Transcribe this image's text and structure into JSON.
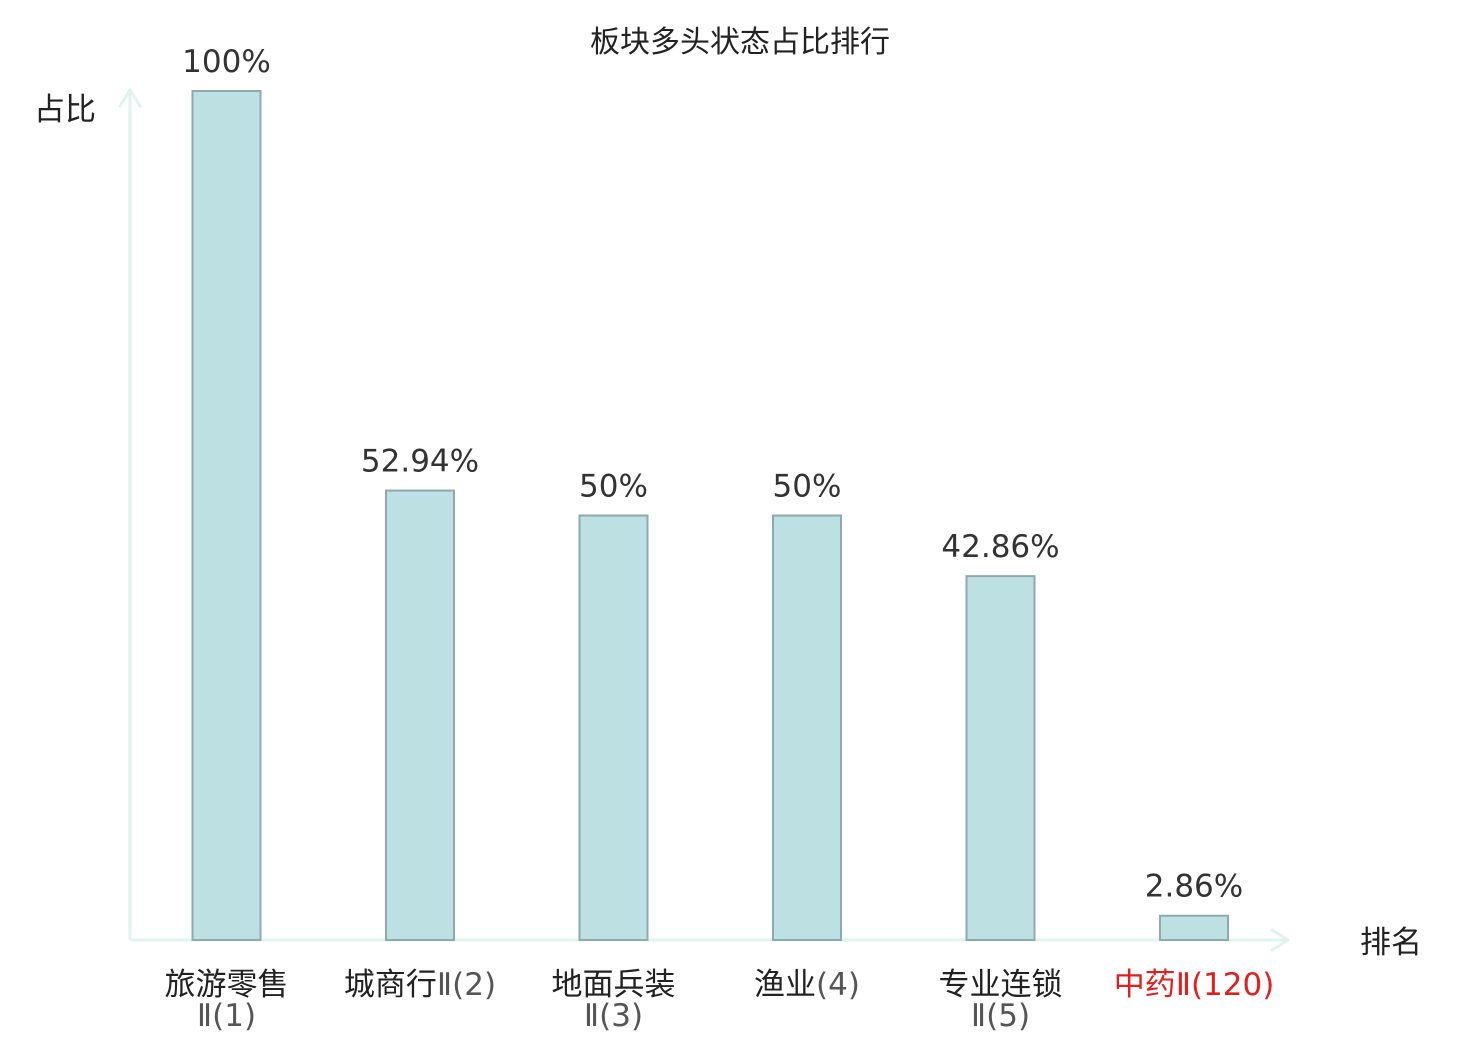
{
  "chart_data": {
    "type": "bar",
    "title": "板块多头状态占比排行",
    "ylabel": "占比",
    "xlabel": "排名",
    "ylim": [
      0,
      100
    ],
    "grid": false,
    "categories": [
      {
        "name": "旅游零售",
        "suffix": "Ⅱ(1)",
        "highlight": false
      },
      {
        "name": "城商行",
        "suffix": "Ⅱ(2)",
        "highlight": false
      },
      {
        "name": "地面兵装",
        "suffix": "Ⅱ(3)",
        "highlight": false
      },
      {
        "name": "渔业",
        "suffix": "(4)",
        "highlight": false
      },
      {
        "name": "专业连锁",
        "suffix": "Ⅱ(5)",
        "highlight": false
      },
      {
        "name": "中药",
        "suffix": "Ⅱ(120)",
        "highlight": true
      }
    ],
    "values": [
      100,
      52.94,
      50,
      50,
      42.86,
      2.86
    ],
    "value_labels": [
      "100%",
      "52.94%",
      "50%",
      "50%",
      "42.86%",
      "2.86%"
    ]
  },
  "colors": {
    "bar_fill": "#bde0e2",
    "bar_stroke": "#8faaac",
    "axis": "#dff3ef",
    "highlight_text": "#e0201f",
    "text": "#222222",
    "suffix_text": "#555555"
  }
}
